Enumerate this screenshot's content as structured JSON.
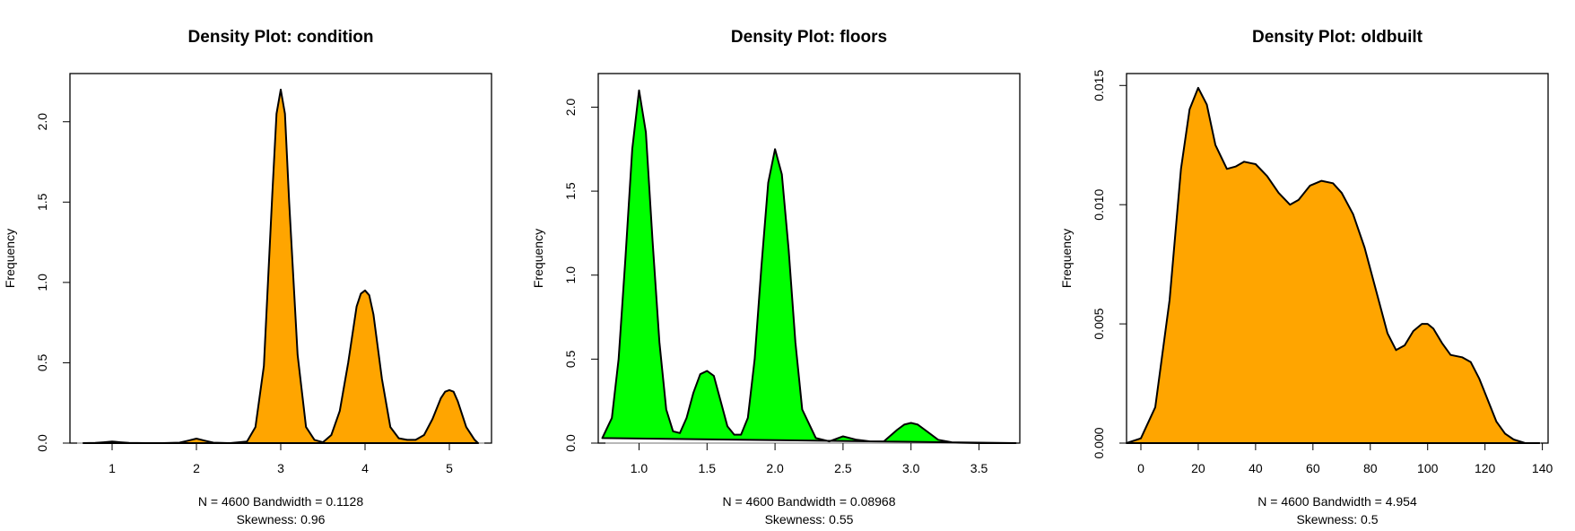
{
  "colors": {
    "orange": "#FFA500",
    "green": "#00FF00",
    "stroke": "#000000",
    "baseline": "#BEBEBE"
  },
  "chart_data": [
    {
      "type": "area",
      "title": "Density Plot: condition",
      "ylabel": "Frequency",
      "xlim": [
        0.5,
        5.5
      ],
      "ylim": [
        0,
        2.3
      ],
      "xticks": [
        "1",
        "2",
        "3",
        "4",
        "5"
      ],
      "yticks": [
        "0.0",
        "0.5",
        "1.0",
        "1.5",
        "2.0"
      ],
      "fill": "#FFA500",
      "sub_line1": "N = 4600   Bandwidth = 0.1128",
      "sub_line2": "Skewness: 0.96",
      "x": [
        0.66,
        0.8,
        0.9,
        1.0,
        1.1,
        1.2,
        1.4,
        1.6,
        1.8,
        1.9,
        2.0,
        2.1,
        2.2,
        2.4,
        2.6,
        2.7,
        2.8,
        2.9,
        2.95,
        3.0,
        3.05,
        3.1,
        3.2,
        3.3,
        3.4,
        3.5,
        3.6,
        3.7,
        3.8,
        3.9,
        3.95,
        4.0,
        4.05,
        4.1,
        4.2,
        4.3,
        4.4,
        4.5,
        4.6,
        4.7,
        4.8,
        4.9,
        4.95,
        5.0,
        5.05,
        5.1,
        5.2,
        5.3,
        5.34
      ],
      "y": [
        0.0,
        0.001,
        0.005,
        0.01,
        0.005,
        0.001,
        0.0,
        0.0,
        0.003,
        0.015,
        0.028,
        0.015,
        0.003,
        0.0,
        0.01,
        0.1,
        0.48,
        1.55,
        2.05,
        2.2,
        2.05,
        1.5,
        0.55,
        0.1,
        0.02,
        0.005,
        0.05,
        0.2,
        0.5,
        0.85,
        0.93,
        0.95,
        0.92,
        0.8,
        0.4,
        0.1,
        0.03,
        0.02,
        0.02,
        0.05,
        0.15,
        0.28,
        0.32,
        0.33,
        0.32,
        0.26,
        0.1,
        0.02,
        0.0
      ]
    },
    {
      "type": "area",
      "title": "Density Plot: floors",
      "ylabel": "Frequency",
      "xlim": [
        0.7,
        3.8
      ],
      "ylim": [
        0,
        2.2
      ],
      "xticks": [
        "1.0",
        "1.5",
        "2.0",
        "2.5",
        "3.0",
        "3.5"
      ],
      "yticks": [
        "0.0",
        "0.5",
        "1.0",
        "1.5",
        "2.0"
      ],
      "fill": "#00FF00",
      "sub_line1": "N = 4600   Bandwidth = 0.08968",
      "sub_line2": "Skewness: 0.55",
      "x": [
        0.73,
        0.8,
        0.85,
        0.9,
        0.95,
        1.0,
        1.05,
        1.1,
        1.15,
        1.2,
        1.25,
        1.3,
        1.35,
        1.4,
        1.45,
        1.5,
        1.55,
        1.6,
        1.65,
        1.7,
        1.75,
        1.8,
        1.85,
        1.9,
        1.95,
        2.0,
        2.05,
        2.1,
        2.15,
        2.2,
        2.3,
        2.4,
        2.5,
        2.6,
        2.7,
        2.8,
        2.9,
        2.95,
        3.0,
        3.05,
        3.1,
        3.2,
        3.3,
        3.5,
        3.77
      ],
      "y": [
        0.03,
        0.15,
        0.5,
        1.1,
        1.75,
        2.1,
        1.85,
        1.2,
        0.6,
        0.2,
        0.07,
        0.06,
        0.15,
        0.3,
        0.41,
        0.43,
        0.4,
        0.25,
        0.1,
        0.05,
        0.05,
        0.15,
        0.5,
        1.05,
        1.55,
        1.75,
        1.6,
        1.15,
        0.6,
        0.2,
        0.03,
        0.01,
        0.04,
        0.02,
        0.01,
        0.01,
        0.08,
        0.11,
        0.12,
        0.11,
        0.08,
        0.02,
        0.005,
        0.0,
        0.0
      ]
    },
    {
      "type": "area",
      "title": "Density Plot: oldbuilt",
      "ylabel": "Frequency",
      "xlim": [
        -5,
        142
      ],
      "ylim": [
        0,
        0.0155
      ],
      "xticks": [
        "0",
        "20",
        "40",
        "60",
        "80",
        "100",
        "120",
        "140"
      ],
      "xtick_values": [
        0,
        20,
        40,
        60,
        80,
        100,
        120,
        140
      ],
      "yticks": [
        "0.000",
        "0.005",
        "0.010",
        "0.015"
      ],
      "ytick_values": [
        0,
        0.005,
        0.01,
        0.015
      ],
      "fill": "#FFA500",
      "sub_line1": "N = 4600   Bandwidth = 4.954",
      "sub_line2": "Skewness: 0.5",
      "x": [
        -5,
        0,
        5,
        10,
        14,
        17,
        20,
        23,
        26,
        30,
        33,
        36,
        40,
        44,
        48,
        52,
        55,
        59,
        63,
        67,
        70,
        74,
        78,
        82,
        86,
        89,
        92,
        95,
        98,
        100,
        102,
        105,
        108,
        112,
        115,
        118,
        121,
        124,
        127,
        130,
        134,
        139
      ],
      "y": [
        0,
        0.0002,
        0.0015,
        0.006,
        0.0115,
        0.014,
        0.0149,
        0.0142,
        0.0125,
        0.0115,
        0.0116,
        0.0118,
        0.0117,
        0.0112,
        0.0105,
        0.01,
        0.0102,
        0.0108,
        0.011,
        0.0109,
        0.0105,
        0.0096,
        0.0082,
        0.0064,
        0.0046,
        0.0039,
        0.0041,
        0.0047,
        0.005,
        0.005,
        0.0048,
        0.0042,
        0.0037,
        0.0036,
        0.0034,
        0.0027,
        0.0018,
        0.0009,
        0.0004,
        0.00015,
        0,
        0
      ]
    }
  ]
}
